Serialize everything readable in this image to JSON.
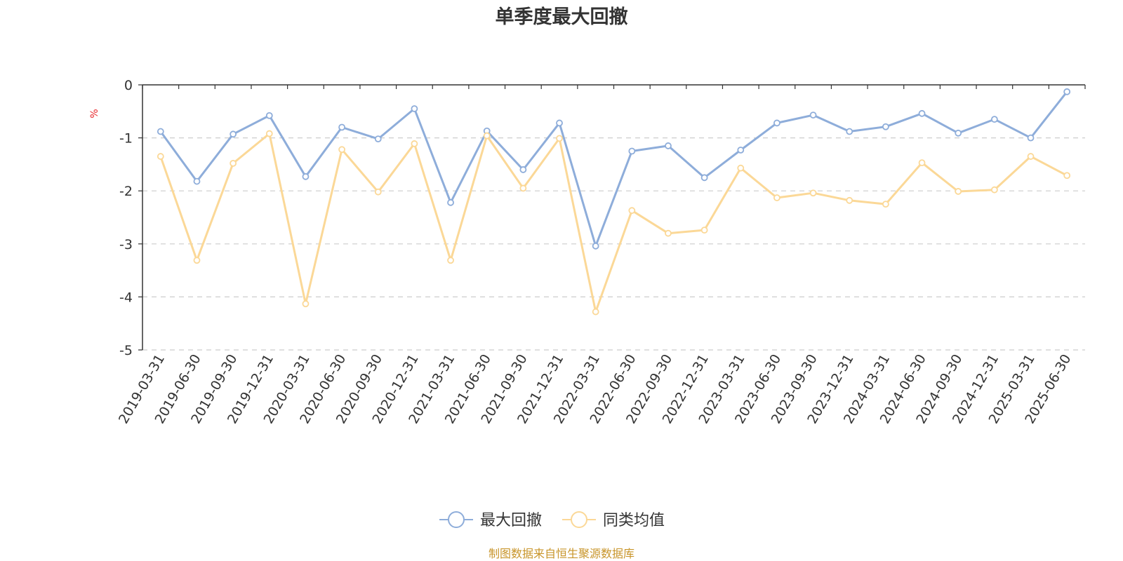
{
  "title": "单季度最大回撤",
  "source_note": "制图数据来自恒生聚源数据库",
  "colors": {
    "series_max_drawdown": "#8eadda",
    "series_category_avg": "#fbd897",
    "axis": "#333333",
    "grid": "#cccccc",
    "unit": "#e8292c",
    "source": "#c8952a"
  },
  "chart_data": {
    "type": "line",
    "title": "单季度最大回撤",
    "xlabel": "",
    "ylabel": "%",
    "ylim": [
      -5,
      0
    ],
    "yticks": [
      0,
      -1,
      -2,
      -3,
      -4,
      -5
    ],
    "grid": true,
    "legend_position": "bottom-center",
    "categories": [
      "2019-03-31",
      "2019-06-30",
      "2019-09-30",
      "2019-12-31",
      "2020-03-31",
      "2020-06-30",
      "2020-09-30",
      "2020-12-31",
      "2021-03-31",
      "2021-06-30",
      "2021-09-30",
      "2021-12-31",
      "2022-03-31",
      "2022-06-30",
      "2022-09-30",
      "2022-12-31",
      "2023-03-31",
      "2023-06-30",
      "2023-09-30",
      "2023-12-31",
      "2024-03-31",
      "2024-06-30",
      "2024-09-30",
      "2024-12-31",
      "2025-03-31",
      "2025-06-30"
    ],
    "series": [
      {
        "name": "最大回撤",
        "values": [
          -0.88,
          -1.82,
          -0.93,
          -0.58,
          -1.73,
          -0.8,
          -1.02,
          -0.45,
          -2.22,
          -0.87,
          -1.6,
          -0.72,
          -3.04,
          -1.25,
          -1.15,
          -1.75,
          -1.23,
          -0.72,
          -0.57,
          -0.88,
          -0.79,
          -0.54,
          -0.91,
          -0.65,
          -1.0,
          -0.13
        ]
      },
      {
        "name": "同类均值",
        "values": [
          -1.35,
          -3.31,
          -1.48,
          -0.92,
          -4.13,
          -1.22,
          -2.02,
          -1.11,
          -3.31,
          -0.96,
          -1.95,
          -1.01,
          -4.28,
          -2.37,
          -2.8,
          -2.74,
          -1.57,
          -2.13,
          -2.04,
          -2.18,
          -2.25,
          -1.47,
          -2.01,
          -1.98,
          -1.35,
          -1.71
        ]
      }
    ]
  }
}
